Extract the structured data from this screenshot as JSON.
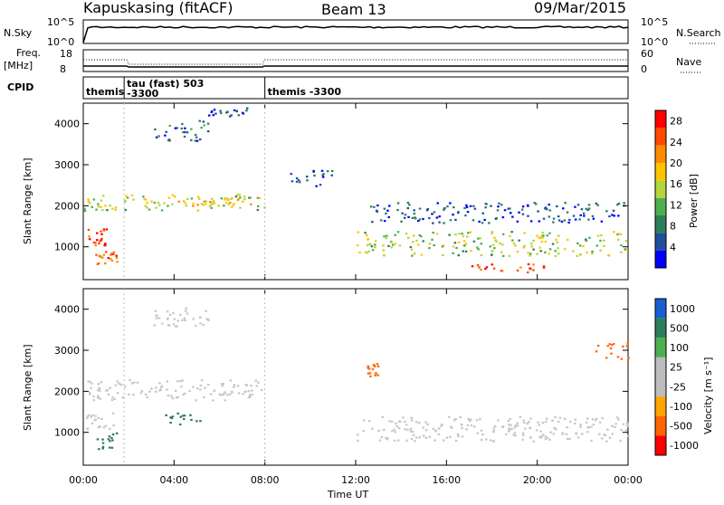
{
  "header": {
    "station": "Kapuskasing (fitACF)",
    "beam": "Beam 13",
    "date": "09/Mar/2015"
  },
  "strip": {
    "nsky_label": "N.Sky",
    "nsky_ticks": [
      "10^5",
      "10^0"
    ],
    "nsearch_label": "N.Search",
    "nsearch_ticks": [
      "10^5",
      "10^0"
    ],
    "freq_label_top": "Freq.",
    "freq_label_bottom": "[MHz]",
    "freq_ticks": [
      "18",
      "8"
    ],
    "nave_label": "Nave",
    "nave_ticks": [
      "60",
      "0"
    ],
    "cpid_label": "CPID",
    "cpid_segments": [
      {
        "text": "themis",
        "start_hour": 0,
        "end_hour": 1.8
      },
      {
        "text": "tau (fast) 503\n-3300",
        "start_hour": 1.8,
        "end_hour": 8.0
      },
      {
        "text": "themis  -3300",
        "start_hour": 8.0,
        "end_hour": 24
      }
    ]
  },
  "panels": {
    "power_ylabel": "Slant Range [km]",
    "velocity_ylabel": "Slant Range [km]",
    "power_colorbar_label": "Power [dB]",
    "velocity_colorbar_label": "Velocity [m s⁻¹]"
  },
  "colors": {
    "power_scale": [
      "#0000ff",
      "#1f4f9e",
      "#2e7d5b",
      "#4caf50",
      "#b5d53a",
      "#ffc400",
      "#ff8a00",
      "#ff4a00",
      "#ff0000"
    ],
    "velocity_scale": [
      "#ff0000",
      "#ff6600",
      "#ffa500",
      "#bdbdbd",
      "#bdbdbd",
      "#4caf50",
      "#2e7d5b",
      "#1a5fd0"
    ],
    "ground_scatter": "#c8c8c0"
  },
  "chart_data": [
    {
      "type": "heatmap",
      "name": "Power",
      "xlabel": "Time UT",
      "ylabel": "Slant Range [km]",
      "xlim": [
        0,
        24
      ],
      "ylim": [
        200,
        4500
      ],
      "x_tick_labels": [
        "00:00",
        "04:00",
        "08:00",
        "12:00",
        "16:00",
        "20:00",
        "00:00"
      ],
      "y_tick_labels": [
        "1000",
        "2000",
        "3000",
        "4000"
      ],
      "colorbar": {
        "label": "Power [dB]",
        "ticks": [
          "4",
          "8",
          "12",
          "16",
          "20",
          "24",
          "28"
        ],
        "range": [
          0,
          30
        ]
      },
      "regions": [
        {
          "t0": 0.0,
          "t1": 1.0,
          "r0": 1050,
          "r1": 1450,
          "value": 26
        },
        {
          "t0": 0.5,
          "t1": 1.5,
          "r0": 600,
          "r1": 900,
          "value": 25
        },
        {
          "t0": 0.0,
          "t1": 8.0,
          "r0": 1900,
          "r1": 2300,
          "value": 14
        },
        {
          "t0": 2.5,
          "t1": 7.5,
          "r0": 2000,
          "r1": 2200,
          "value": 18
        },
        {
          "t0": 3.0,
          "t1": 5.5,
          "r0": 3600,
          "r1": 4100,
          "value": 6
        },
        {
          "t0": 5.5,
          "t1": 7.3,
          "r0": 4200,
          "r1": 4400,
          "value": 4
        },
        {
          "t0": 9.0,
          "t1": 11.0,
          "r0": 2500,
          "r1": 2900,
          "value": 5
        },
        {
          "t0": 12.0,
          "t1": 24.0,
          "r0": 800,
          "r1": 1400,
          "value": 14
        },
        {
          "t0": 17.0,
          "t1": 20.5,
          "r0": 400,
          "r1": 600,
          "value": 26
        },
        {
          "t0": 12.5,
          "t1": 24.0,
          "r0": 1600,
          "r1": 2100,
          "value": 5
        }
      ]
    },
    {
      "type": "heatmap",
      "name": "Velocity",
      "xlabel": "Time UT",
      "ylabel": "Slant Range [km]",
      "xlim": [
        0,
        24
      ],
      "ylim": [
        200,
        4500
      ],
      "x_tick_labels": [
        "00:00",
        "04:00",
        "08:00",
        "12:00",
        "16:00",
        "20:00",
        "00:00"
      ],
      "y_tick_labels": [
        "1000",
        "2000",
        "3000",
        "4000"
      ],
      "colorbar": {
        "label": "Velocity [m s⁻¹]",
        "ticks": [
          "1000",
          "500",
          "100",
          "25",
          "-25",
          "-100",
          "-500",
          "-1000"
        ]
      },
      "ground_scatter_regions": [
        {
          "t0": 0.0,
          "t1": 8.0,
          "r0": 1800,
          "r1": 2300
        },
        {
          "t0": 0.0,
          "t1": 1.5,
          "r0": 1100,
          "r1": 1500
        },
        {
          "t0": 12.0,
          "t1": 24.0,
          "r0": 800,
          "r1": 1400
        },
        {
          "t0": 3.0,
          "t1": 5.5,
          "r0": 3600,
          "r1": 4100
        }
      ],
      "velocity_regions": [
        {
          "t0": 0.5,
          "t1": 1.5,
          "r0": 600,
          "r1": 1000,
          "value": 150
        },
        {
          "t0": 3.5,
          "t1": 5.2,
          "r0": 1200,
          "r1": 1500,
          "value": 300
        },
        {
          "t0": 12.5,
          "t1": 13.0,
          "r0": 2300,
          "r1": 2700,
          "value": -150
        },
        {
          "t0": 22.5,
          "t1": 24.0,
          "r0": 2800,
          "r1": 3200,
          "value": -200
        }
      ]
    }
  ]
}
